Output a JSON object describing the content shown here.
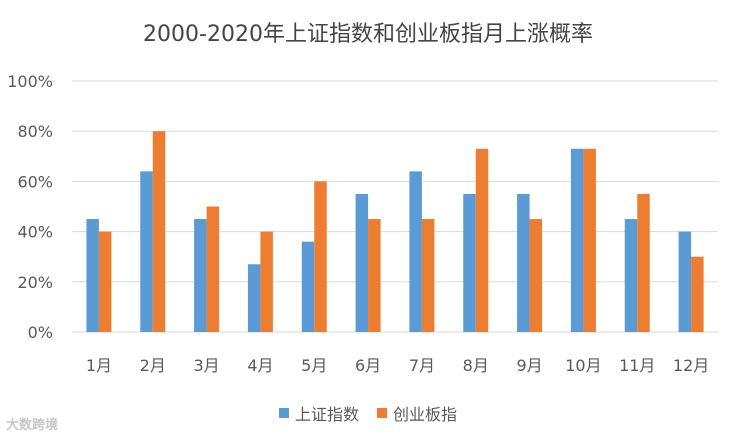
{
  "chart_data": {
    "type": "bar",
    "title": "2000-2020年上证指数和创业板指月上涨概率",
    "categories": [
      "1月",
      "2月",
      "3月",
      "4月",
      "5月",
      "6月",
      "7月",
      "8月",
      "9月",
      "10月",
      "11月",
      "12月"
    ],
    "series": [
      {
        "name": "上证指数",
        "color": "#5b9bd5",
        "values": [
          45,
          64,
          45,
          27,
          36,
          55,
          64,
          55,
          55,
          73,
          45,
          40
        ]
      },
      {
        "name": "创业板指",
        "color": "#ed7d31",
        "values": [
          40,
          80,
          50,
          40,
          60,
          45,
          45,
          73,
          45,
          73,
          55,
          30
        ]
      }
    ],
    "ylim": [
      0,
      100
    ],
    "yticks": [
      "0%",
      "20%",
      "40%",
      "60%",
      "80%",
      "100%"
    ],
    "xlabel": "",
    "ylabel": "",
    "grid": true,
    "legend": "bottom"
  },
  "watermark": "大数跨境"
}
